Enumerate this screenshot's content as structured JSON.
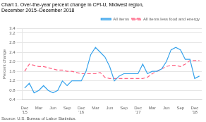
{
  "chart_data": {
    "type": "line",
    "title": [
      "Chart 1. Over-the-year percent change in CPI-U, Midwest region,",
      "December 2015–December 2018"
    ],
    "y_label": "Percent change",
    "annotations": [
      "Source: U.S. Bureau of Labor Statistics."
    ],
    "categories": [
      "Dec\n'15",
      null,
      null,
      "Mar",
      null,
      null,
      "Jun",
      null,
      null,
      "Sep",
      null,
      null,
      "Dec\n'16",
      null,
      null,
      "Mar",
      null,
      null,
      "Jun",
      null,
      null,
      "Sep",
      null,
      null,
      "Dec\n'17",
      null,
      null,
      "Mar",
      null,
      null,
      "Jun",
      null,
      null,
      "Sep",
      null,
      null,
      "Dec\n'18",
      null
    ],
    "series": [
      {
        "name": "All items",
        "line_style": "solid",
        "values": [
          0.9,
          1.1,
          0.7,
          0.8,
          1.0,
          0.8,
          0.7,
          0.8,
          1.2,
          1.0,
          1.2,
          1.2,
          1.2,
          1.6,
          2.3,
          2.6,
          2.4,
          2.2,
          1.8,
          1.2,
          1.4,
          1.5,
          1.5,
          1.5,
          1.5,
          1.9,
          1.5,
          1.6,
          1.6,
          1.7,
          2.0,
          2.5,
          2.6,
          2.5,
          2.1,
          2.1,
          1.3,
          1.4
        ]
      },
      {
        "name": "All items less food and energy",
        "line_style": "dashed",
        "values": [
          1.6,
          1.9,
          1.85,
          1.8,
          1.8,
          1.75,
          1.7,
          1.65,
          1.65,
          1.6,
          1.6,
          1.55,
          1.5,
          1.5,
          1.5,
          1.5,
          1.55,
          1.35,
          1.3,
          1.3,
          1.3,
          1.3,
          1.3,
          1.3,
          1.3,
          1.3,
          1.35,
          1.5,
          1.6,
          1.7,
          1.8,
          1.85,
          1.85,
          1.8,
          1.9,
          2.05,
          2.05,
          2.05
        ]
      }
    ],
    "ylim": [
      0.4,
      3.4
    ],
    "yticks": [
      0.4,
      0.8,
      1.2,
      1.6,
      {
        "value": 2.0,
        "label": "2.0"
      },
      2.4,
      2.8,
      3.2,
      3.4
    ],
    "grid": "y",
    "legend": "top right"
  }
}
